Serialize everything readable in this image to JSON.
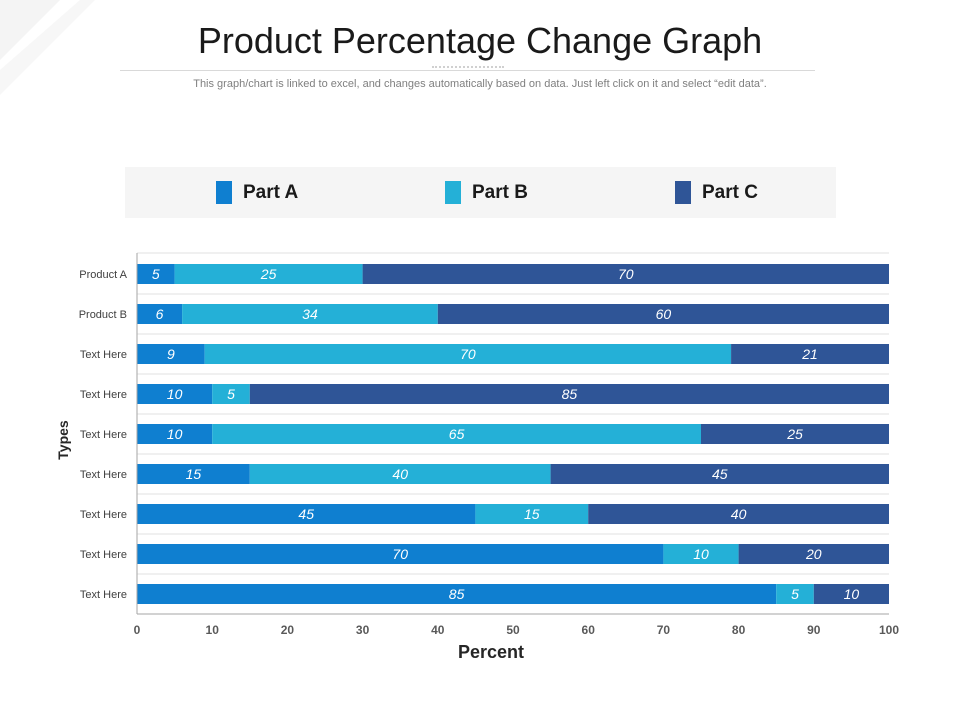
{
  "page": {
    "title": "Product Percentage Change Graph",
    "subtitle": "This graph/chart is linked to excel, and changes automatically based on data. Just left click on it and select “edit data”."
  },
  "colors": {
    "part_a": "#0f7fd0",
    "part_b": "#24b0d7",
    "part_c": "#2f5597",
    "gridline": "#e2e2e2",
    "axis": "#a6a6a6"
  },
  "chart_data": {
    "type": "bar",
    "orientation": "horizontal",
    "stacked": true,
    "categories": [
      "Product A",
      "Product B",
      "Text Here",
      "Text Here",
      "Text Here",
      "Text Here",
      "Text Here",
      "Text Here",
      "Text Here"
    ],
    "series": [
      {
        "name": "Part A",
        "values": [
          5,
          6,
          9,
          10,
          10,
          15,
          45,
          70,
          85
        ]
      },
      {
        "name": "Part B",
        "values": [
          25,
          34,
          70,
          5,
          65,
          40,
          15,
          10,
          5
        ]
      },
      {
        "name": "Part C",
        "values": [
          70,
          60,
          21,
          85,
          25,
          45,
          40,
          20,
          10
        ]
      }
    ],
    "xlabel": "Percent",
    "ylabel": "Types",
    "xlim": [
      0,
      100
    ],
    "xticks": [
      "0",
      "10",
      "20",
      "30",
      "40",
      "50",
      "60",
      "70",
      "80",
      "90",
      "100"
    ],
    "data_labels": true,
    "grid": true,
    "legend_position": "top"
  }
}
